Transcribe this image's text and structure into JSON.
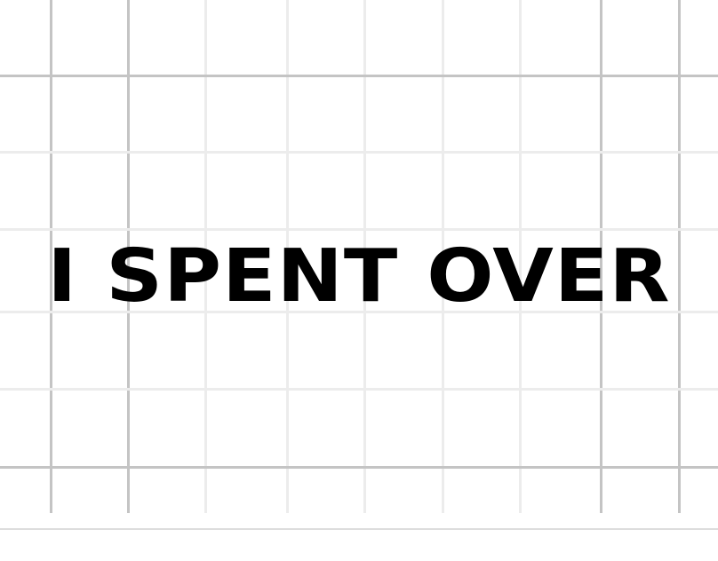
{
  "headline": {
    "text": "I SPENT OVER"
  },
  "colors": {
    "background": "#ffffff",
    "headline_text": "#000000",
    "grid_line": "#c4c4c4",
    "grid_line_faint": "#ececec",
    "bottom_rule": "#dddddd"
  }
}
